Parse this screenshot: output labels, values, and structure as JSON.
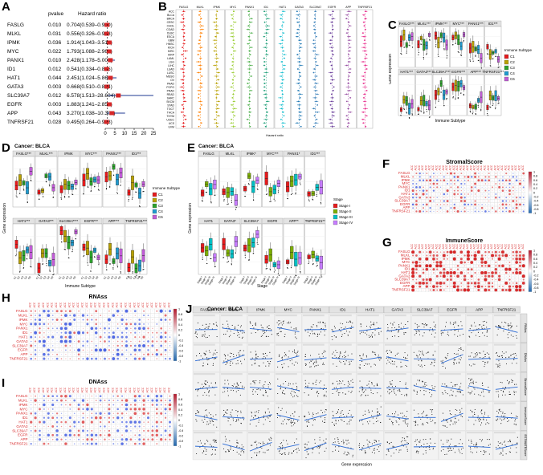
{
  "panel_labels": [
    "A",
    "B",
    "C",
    "D",
    "E",
    "F",
    "G",
    "H",
    "I",
    "J"
  ],
  "panel_a": {
    "col_pvalue": "pvalue",
    "col_hr": "Hazard ratio",
    "xlabel": "Hazard ratio",
    "ticks": [
      "0",
      "5",
      "10",
      "15",
      "20",
      "25"
    ],
    "rows": [
      {
        "gene": "FASLG",
        "p": "0.010",
        "hr": "0.704(0.539–0.920)",
        "est": 0.704,
        "lo": 0.539,
        "hi": 0.92
      },
      {
        "gene": "MLKL",
        "p": "0.031",
        "hr": "0.556(0.326–0.948)",
        "est": 0.556,
        "lo": 0.326,
        "hi": 0.948
      },
      {
        "gene": "IPMK",
        "p": "0.036",
        "hr": "1.914(1.043–3.513)",
        "est": 1.914,
        "lo": 1.043,
        "hi": 3.513
      },
      {
        "gene": "MYC",
        "p": "0.022",
        "hr": "1.793(1.088–2.962)",
        "est": 1.793,
        "lo": 1.088,
        "hi": 2.962
      },
      {
        "gene": "PANX1",
        "p": "0.010",
        "hr": "2.428(1.178–5.005)",
        "est": 2.428,
        "lo": 1.178,
        "hi": 5.005
      },
      {
        "gene": "ID1",
        "p": "0.012",
        "hr": "0.541(0.334–0.875)",
        "est": 0.541,
        "lo": 0.334,
        "hi": 0.875
      },
      {
        "gene": "HAT1",
        "p": "0.044",
        "hr": "2.451(1.024–5.866)",
        "est": 2.451,
        "lo": 1.024,
        "hi": 5.866
      },
      {
        "gene": "GATA3",
        "p": "0.003",
        "hr": "0.668(0.510–0.874)",
        "est": 0.668,
        "lo": 0.51,
        "hi": 0.874
      },
      {
        "gene": "SLC39A7",
        "p": "0.012",
        "hr": "6.578(1.513–28.604)",
        "est": 6.578,
        "lo": 1.513,
        "hi": 28.604
      },
      {
        "gene": "EGFR",
        "p": "0.003",
        "hr": "1.883(1.241–2.856)",
        "est": 1.883,
        "lo": 1.241,
        "hi": 2.856
      },
      {
        "gene": "APP",
        "p": "0.043",
        "hr": "3.270(1.038–10.306)",
        "est": 3.27,
        "lo": 1.038,
        "hi": 10.306
      },
      {
        "gene": "TNFRSF21",
        "p": "0.028",
        "hr": "0.495(0.264–0.928)",
        "est": 0.495,
        "lo": 0.264,
        "hi": 0.928
      }
    ]
  },
  "panel_b": {
    "genes": [
      "FASLG",
      "MLKL",
      "IPMK",
      "MYC",
      "PANX1",
      "ID1",
      "HAT1",
      "GATA3",
      "SLC39A7",
      "EGFR",
      "APP",
      "TNFRSF21"
    ],
    "colors": [
      "#e41a1c",
      "#ff7f00",
      "#b8a000",
      "#9acd32",
      "#4daf4a",
      "#1b9e77",
      "#17becf",
      "#1f78b4",
      "#377eb8",
      "#6a3d9a",
      "#984ea3",
      "#e7298a"
    ],
    "cancers": [
      "ACC",
      "BLCA",
      "BRCA",
      "CESC",
      "CHOL",
      "COAD",
      "DLBC",
      "ESCA",
      "GBM",
      "HNSC",
      "KICH",
      "KIRC",
      "KIRP",
      "LAML",
      "LGG",
      "LIHC",
      "LUAD",
      "LUSC",
      "MESO",
      "OV",
      "PAAD",
      "PCPG",
      "PRAD",
      "READ",
      "SARC",
      "SKCM",
      "STAD",
      "TGCT",
      "THCA",
      "THYM",
      "UCEC",
      "UCS",
      "UVM"
    ],
    "xlabel": "Hazard ratio"
  },
  "panel_c": {
    "genes": [
      "FASLG***",
      "MLKL***",
      "IPMK***",
      "MYC***",
      "PANX1***",
      "ID1***",
      "HAT1***",
      "GATA3***",
      "SLC39A7***",
      "EGFR***",
      "APP***",
      "TNFRSF21***"
    ],
    "ylabel": "Gene expression",
    "xlabel": "Immune Subtype",
    "legend_title": "Immune Subtype",
    "legend": [
      "C1",
      "C2",
      "C3",
      "C4",
      "C6"
    ]
  },
  "panel_d": {
    "title": "Cancer: BLCA",
    "genes": [
      "FASLG***",
      "MLKL***",
      "IPMK",
      "MYC***",
      "PANX1***",
      "ID1***",
      "HAT1***",
      "GATA3***",
      "SLC39A7***",
      "EGFR***",
      "APP***",
      "TNFRSF21***"
    ],
    "ylabel": "Gene expression",
    "xlabel": "Immune Subtype",
    "legend_title": "Immune Subtype",
    "legend": [
      "C1",
      "C2",
      "C3",
      "C4",
      "C6"
    ],
    "xticks": [
      "C1",
      "C2",
      "C3",
      "C4",
      "C6"
    ]
  },
  "panel_e": {
    "title": "Cancer: BLCA",
    "genes": [
      "FASLG",
      "MLKL",
      "IPMK*",
      "MYC***",
      "PANX1*",
      "ID1***",
      "HAT1",
      "GATA3*",
      "SLC39A7",
      "EGFR",
      "APP**",
      "TNFRSF21**"
    ],
    "ylabel": "Gene expression",
    "xlabel": "Stage",
    "legend_title": "Stage",
    "legend": [
      "Stage I",
      "Stage II",
      "Stage III",
      "Stage IV"
    ],
    "xticks": [
      "Stage I",
      "Stage II",
      "Stage III",
      "Stage IV"
    ]
  },
  "corr_genes": [
    "FASLG",
    "MLKL",
    "IPMK",
    "MYC",
    "PANX1",
    "ID1",
    "HAT1",
    "GATA3",
    "SLC39A7",
    "EGFR",
    "APP",
    "TNFRSF21"
  ],
  "panel_f": {
    "title": "StromalScore",
    "scale": [
      "1",
      "0.8",
      "0.6",
      "0.4",
      "0.2",
      "0",
      "-0.2",
      "-0.4",
      "-0.6",
      "-0.8",
      "-1"
    ]
  },
  "panel_g": {
    "title": "ImmuneScore",
    "scale": [
      "1",
      "0.8",
      "0.6",
      "0.4",
      "0.2",
      "0",
      "-0.2",
      "-0.4",
      "-0.6",
      "-0.8",
      "-1"
    ]
  },
  "panel_h": {
    "title": "RNAss",
    "scale": [
      "1",
      "0.8",
      "0.6",
      "0.4",
      "0.2",
      "0",
      "-0.2",
      "-0.4",
      "-0.6",
      "-0.8",
      "-1"
    ]
  },
  "panel_i": {
    "title": "DNAss",
    "scale": [
      "1",
      "0.8",
      "0.6",
      "0.4",
      "0.2",
      "0",
      "-0.2",
      "-0.4",
      "-0.6",
      "-0.8",
      "-1"
    ]
  },
  "panel_j": {
    "title": "Cancer: BLCA",
    "genes": [
      "FASLG",
      "MLKL",
      "IPMK",
      "MYC",
      "PANX1",
      "ID1",
      "HAT1",
      "GATA3",
      "SLC39A7",
      "EGFR",
      "APP",
      "TNFRSF21"
    ],
    "rows": [
      "RNAss",
      "DNAss",
      "StromalScore",
      "ImmuneScore",
      "ESTIMATEScore"
    ],
    "xlabel": "Gene expression"
  },
  "colors": {
    "subtype": [
      "#e41a1c",
      "#b8a000",
      "#2ca02c",
      "#1f9bcf",
      "#c05cd6"
    ],
    "stage": [
      "#e41a1c",
      "#7cae00",
      "#00bfc4",
      "#c77cff"
    ],
    "forest_box": "#d62728",
    "forest_ci": "#1f3a93",
    "reg_line": "#2a6ad6"
  }
}
